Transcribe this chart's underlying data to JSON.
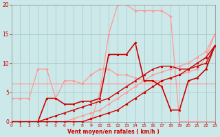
{
  "background_color": "#cce8e8",
  "grid_color": "#aacccc",
  "xlabel": "Vent moyen/en rafales ( km/h )",
  "xlim": [
    0,
    23
  ],
  "ylim": [
    0,
    20
  ],
  "yticks": [
    0,
    5,
    10,
    15,
    20
  ],
  "xticks": [
    0,
    1,
    2,
    3,
    4,
    5,
    6,
    7,
    8,
    9,
    10,
    11,
    12,
    13,
    14,
    15,
    16,
    17,
    18,
    19,
    20,
    21,
    22,
    23
  ],
  "series": [
    {
      "x": [
        0,
        1,
        2,
        3,
        4,
        5,
        6,
        7,
        8,
        9,
        10,
        11,
        12,
        13,
        14,
        15,
        16,
        17,
        18,
        19,
        20,
        21,
        22,
        23
      ],
      "y": [
        6.5,
        6.5,
        6.5,
        6.5,
        6.5,
        6.5,
        6.5,
        6.5,
        6.5,
        6.5,
        6.5,
        6.5,
        6.5,
        6.5,
        6.5,
        6.5,
        6.5,
        6.5,
        6.5,
        6.5,
        6.5,
        6.5,
        6.5,
        6.5
      ],
      "color": "#ff9999",
      "lw": 0.9,
      "marker": "+",
      "ms": 2.5,
      "zorder": 2
    },
    {
      "x": [
        0,
        1,
        2,
        3,
        4,
        5,
        6,
        7,
        8,
        9,
        10,
        11,
        12,
        13,
        14,
        15,
        16,
        17,
        18,
        19,
        20,
        21,
        22,
        23
      ],
      "y": [
        0,
        0,
        0,
        0,
        0,
        0,
        0,
        0.5,
        1,
        1.5,
        2,
        3,
        4,
        5,
        6,
        7,
        8,
        8.5,
        9,
        9.5,
        10,
        11,
        12,
        15
      ],
      "color": "#ff9999",
      "lw": 0.9,
      "marker": "D",
      "ms": 1.8,
      "zorder": 2
    },
    {
      "x": [
        0,
        1,
        2,
        3,
        4,
        5,
        6,
        7,
        8,
        9,
        10,
        11,
        12,
        13,
        14,
        15,
        16,
        17,
        18,
        19,
        20,
        21,
        22,
        23
      ],
      "y": [
        0,
        0,
        0,
        0,
        0,
        0,
        0,
        0,
        0,
        0,
        5,
        15,
        20,
        20,
        19,
        19,
        19,
        19,
        18,
        0,
        0,
        0,
        0,
        0
      ],
      "color": "#ff9999",
      "lw": 0.9,
      "marker": "D",
      "ms": 1.8,
      "zorder": 2
    },
    {
      "x": [
        0,
        1,
        2,
        3,
        4,
        5,
        6,
        7,
        8,
        9,
        10,
        11,
        12,
        13,
        14,
        15,
        16,
        17,
        18,
        19,
        20,
        21,
        22,
        23
      ],
      "y": [
        4,
        4,
        4,
        9,
        9,
        4,
        7,
        7,
        6.5,
        8,
        9,
        9,
        8,
        8,
        7.5,
        7,
        7,
        7,
        7.5,
        8,
        8.5,
        9,
        11,
        15
      ],
      "color": "#ff9999",
      "lw": 0.9,
      "marker": "D",
      "ms": 1.8,
      "zorder": 2
    },
    {
      "x": [
        0,
        1,
        2,
        3,
        4,
        5,
        6,
        7,
        8,
        9,
        10,
        11,
        12,
        13,
        14,
        15,
        16,
        17,
        18,
        19,
        20,
        21,
        22,
        23
      ],
      "y": [
        0,
        0,
        0,
        0,
        0,
        0,
        0,
        0,
        0,
        0.5,
        1,
        1.5,
        2,
        3,
        4,
        5,
        6,
        7,
        7.5,
        8,
        9,
        10,
        11,
        13
      ],
      "color": "#cc0000",
      "lw": 1.0,
      "marker": "o",
      "ms": 2.0,
      "zorder": 5
    },
    {
      "x": [
        0,
        1,
        2,
        3,
        4,
        5,
        6,
        7,
        8,
        9,
        10,
        11,
        12,
        13,
        14,
        15,
        16,
        17,
        18,
        19,
        20,
        21,
        22,
        23
      ],
      "y": [
        0,
        0,
        0,
        0,
        0.5,
        1,
        1.5,
        2,
        2.5,
        3,
        3.5,
        4,
        5,
        6,
        7,
        8,
        9,
        9.5,
        9.5,
        9,
        9,
        9.5,
        10,
        13
      ],
      "color": "#cc0000",
      "lw": 1.0,
      "marker": "^",
      "ms": 2.0,
      "zorder": 4
    },
    {
      "x": [
        0,
        1,
        2,
        3,
        4,
        5,
        6,
        7,
        8,
        9,
        10,
        11,
        12,
        13,
        14,
        15,
        16,
        17,
        18,
        19,
        20,
        21,
        22,
        23
      ],
      "y": [
        0,
        0,
        0,
        0,
        4,
        4,
        3,
        3,
        3.5,
        3.5,
        4,
        11.5,
        11.5,
        11.5,
        13.5,
        7,
        7,
        6,
        2,
        2,
        7,
        7.5,
        9,
        13
      ],
      "color": "#cc0000",
      "lw": 1.2,
      "marker": "s",
      "ms": 2.0,
      "zorder": 6
    }
  ]
}
